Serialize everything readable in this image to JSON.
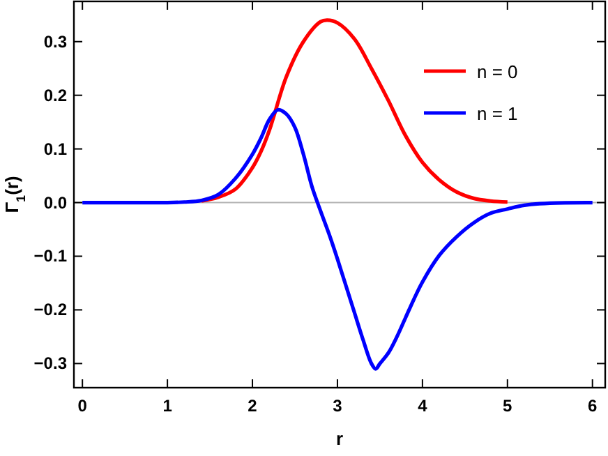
{
  "chart_data": {
    "type": "line",
    "xlabel": "r",
    "ylabel": "Γ$_{1}$(r)",
    "xlim": [
      -0.1,
      6.15
    ],
    "ylim": [
      -0.345,
      0.375
    ],
    "xticks": [
      0,
      1,
      2,
      3,
      4,
      5,
      6
    ],
    "yticks": [
      {
        "value": -0.3,
        "label": "−0.3"
      },
      {
        "value": -0.2,
        "label": "−0.2"
      },
      {
        "value": -0.1,
        "label": "−0.1"
      },
      {
        "value": 0,
        "label": "0.0"
      },
      {
        "value": 0.1,
        "label": "0.1"
      },
      {
        "value": 0.2,
        "label": "0.2"
      },
      {
        "value": 0.3,
        "label": "0.3"
      }
    ],
    "grid": false,
    "legend": "top right",
    "line_style": "solid",
    "marker": "none",
    "ref_lines": [
      {
        "axis": "y",
        "value": 0,
        "color": "#b3b3b3"
      }
    ],
    "series": [
      {
        "name": "n = 0",
        "color": "#ff0000",
        "x": [
          1.4,
          1.6,
          1.8,
          2,
          2.1,
          2.2,
          2.25,
          2.4,
          2.6,
          2.8,
          2.88,
          3,
          3.2,
          3.4,
          3.6,
          3.8,
          4,
          4.2,
          4.4,
          4.6,
          4.8,
          5
        ],
        "values": [
          0.003,
          0.01,
          0.025,
          0.065,
          0.095,
          0.135,
          0.16,
          0.235,
          0.3,
          0.337,
          0.34,
          0.335,
          0.305,
          0.25,
          0.19,
          0.125,
          0.075,
          0.042,
          0.02,
          0.008,
          0.003,
          0.001
        ]
      },
      {
        "name": "n = 1",
        "color": "#0000ff",
        "x": [
          0,
          0.5,
          1,
          1.2,
          1.4,
          1.6,
          1.8,
          2,
          2.1,
          2.2,
          2.3,
          2.4,
          2.5,
          2.6,
          2.7,
          2.8,
          2.9,
          3,
          3.1,
          3.2,
          3.3,
          3.4,
          3.45,
          3.5,
          3.6,
          3.7,
          3.8,
          3.9,
          4,
          4.2,
          4.4,
          4.6,
          4.8,
          5,
          5.2,
          5.5,
          6
        ],
        "values": [
          0,
          0,
          0,
          0.001,
          0.004,
          0.015,
          0.045,
          0.09,
          0.12,
          0.155,
          0.173,
          0.165,
          0.14,
          0.09,
          0.03,
          -0.015,
          -0.058,
          -0.105,
          -0.155,
          -0.205,
          -0.255,
          -0.3,
          -0.31,
          -0.3,
          -0.28,
          -0.25,
          -0.215,
          -0.18,
          -0.148,
          -0.098,
          -0.064,
          -0.038,
          -0.02,
          -0.012,
          -0.005,
          -0.001,
          0
        ]
      }
    ]
  }
}
